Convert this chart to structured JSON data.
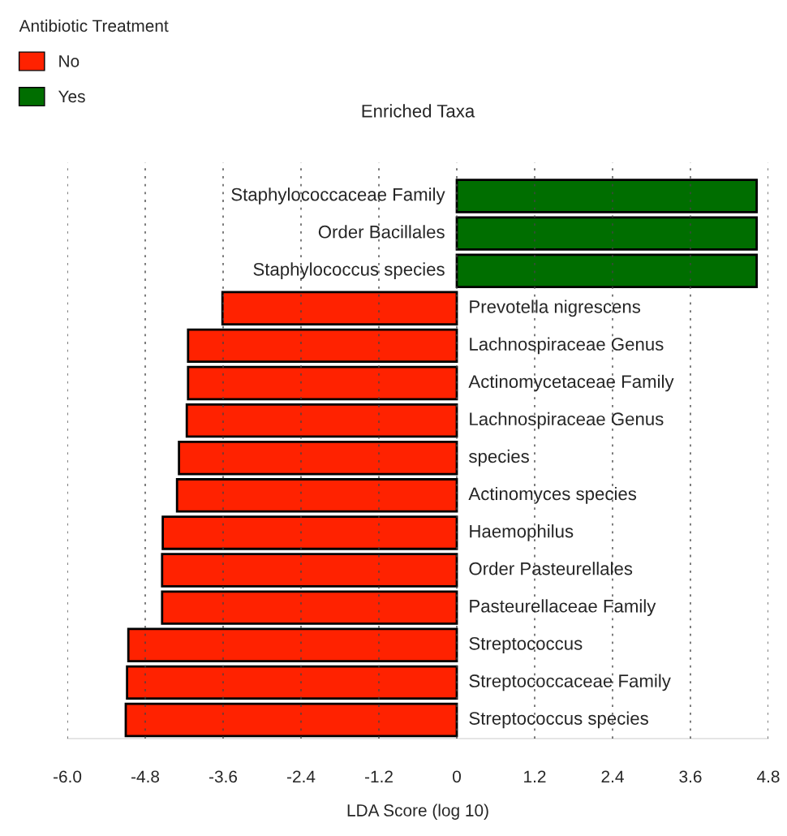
{
  "chart_data": {
    "type": "bar",
    "orientation": "horizontal",
    "title": "Enriched Taxa",
    "xlabel": "LDA Score (log 10)",
    "legend_title": "Antibiotic Treatment",
    "legend": "top left",
    "categories": [
      "Staphylococcaceae Family",
      "Order Bacillales",
      "Staphylococcus species",
      "Prevotella nigrescens",
      "Lachnospiraceae Genus",
      "Actinomycetaceae Family",
      "Lachnospiraceae Genus",
      "species",
      "Actinomyces species",
      "Haemophilus",
      "Order Pasteurellales",
      "Pasteurellaceae Family",
      "Streptococcus",
      "Streptococcaceae Family",
      "Streptococcus species"
    ],
    "series": [
      {
        "name": "No",
        "color": "#ff2200",
        "values": [
          null,
          null,
          null,
          -3.61,
          -4.14,
          -4.14,
          -4.16,
          -4.28,
          -4.31,
          -4.53,
          -4.54,
          -4.54,
          -5.06,
          -5.08,
          -5.1
        ]
      },
      {
        "name": "Yes",
        "color": "#006e00",
        "values": [
          4.62,
          4.62,
          4.62,
          null,
          null,
          null,
          null,
          null,
          null,
          null,
          null,
          null,
          null,
          null,
          null
        ]
      }
    ],
    "xlim": [
      -6,
      4.8
    ],
    "xticks": [
      {
        "value": -6,
        "label": "-6.0"
      },
      -4.8,
      -3.6,
      -2.4,
      -1.2,
      0,
      1.2,
      2.4,
      3.6,
      4.8
    ],
    "grid": "x"
  }
}
